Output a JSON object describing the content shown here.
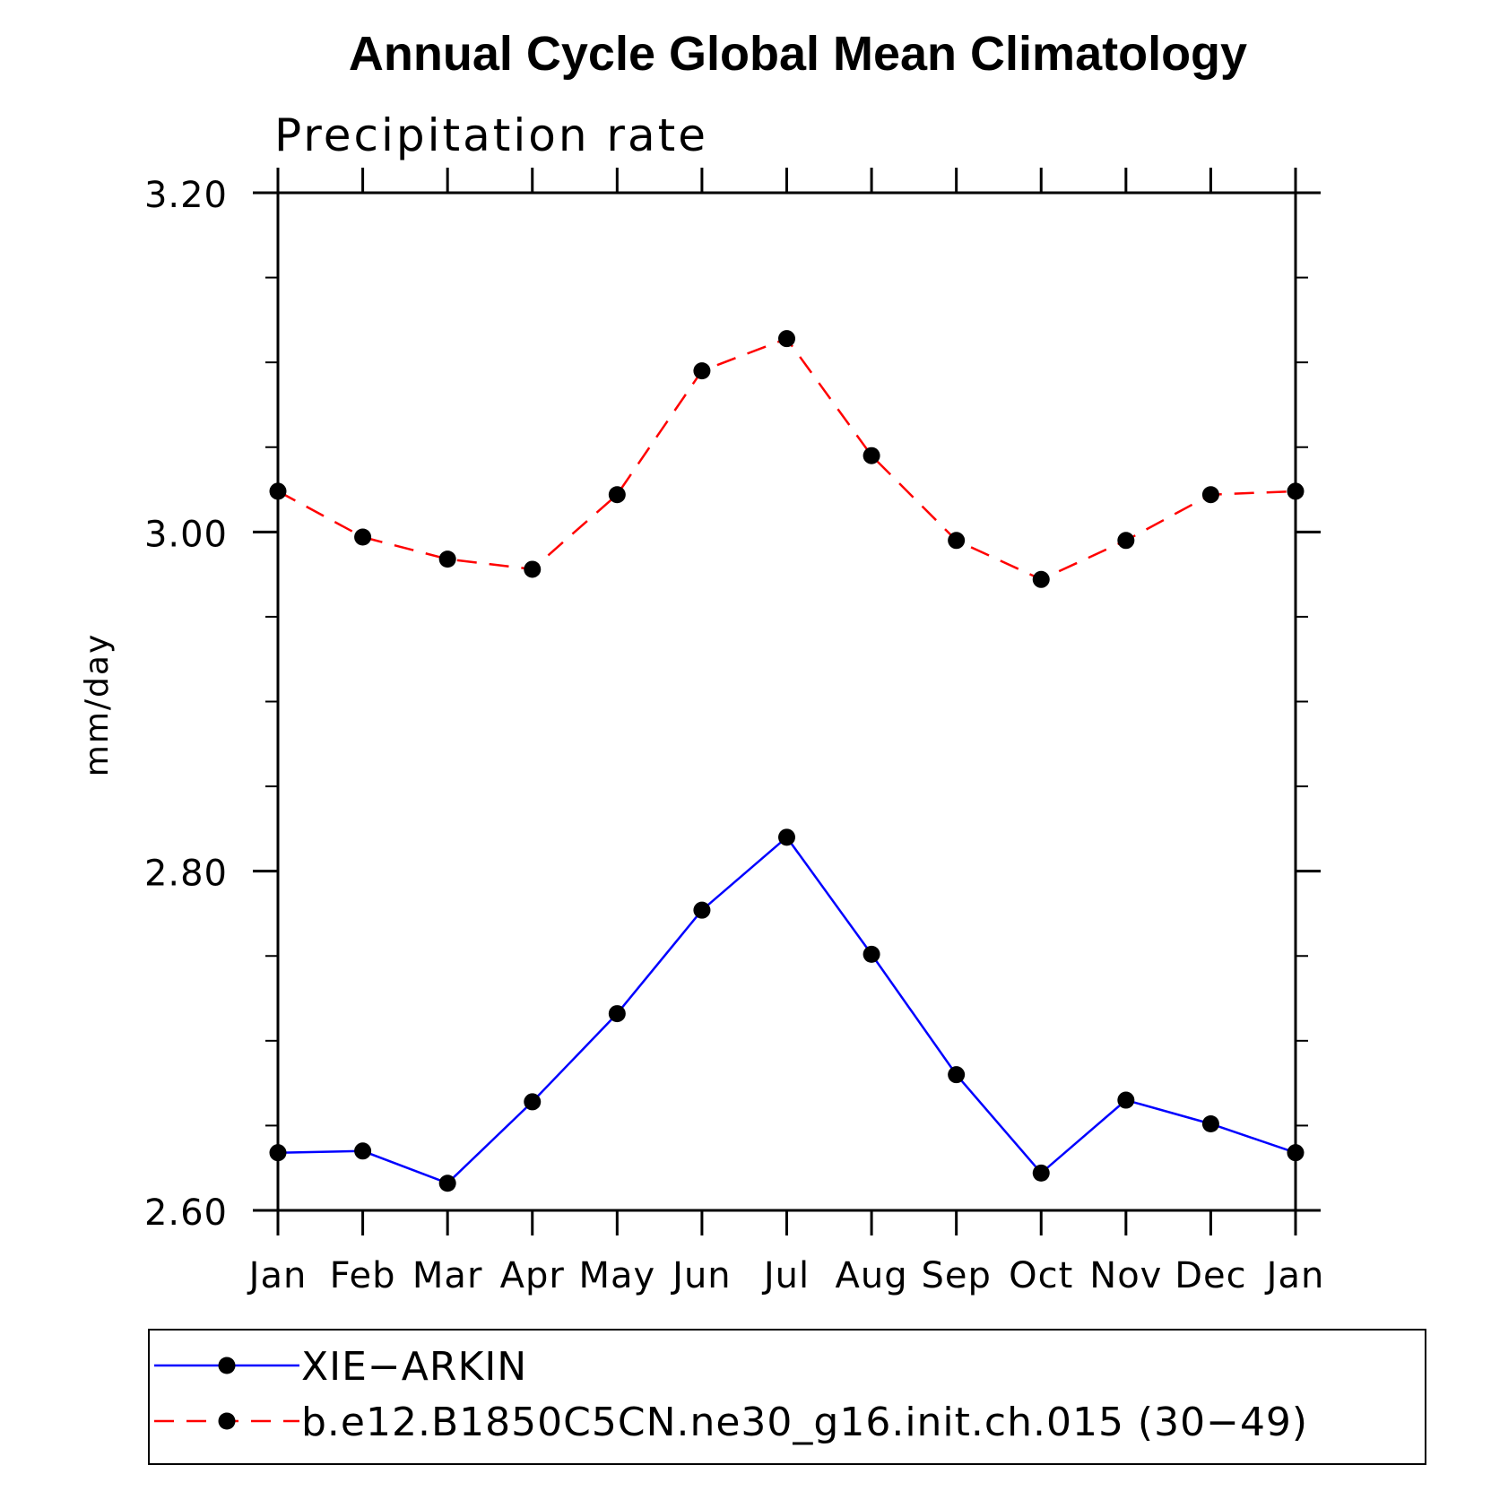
{
  "chart_data": {
    "type": "line",
    "title": "Annual Cycle Global Mean Climatology",
    "subtitle": "Precipitation rate",
    "xlabel": "",
    "ylabel": "mm/day",
    "categories": [
      "Jan",
      "Feb",
      "Mar",
      "Apr",
      "May",
      "Jun",
      "Jul",
      "Aug",
      "Sep",
      "Oct",
      "Nov",
      "Dec",
      "Jan"
    ],
    "ylim": [
      2.6,
      3.2
    ],
    "yticks_major": [
      "2.60",
      "2.80",
      "3.00",
      "3.20"
    ],
    "grid": false,
    "legend_position": "bottom",
    "series": [
      {
        "name": "XIE−ARKIN",
        "color": "#0000ff",
        "style": "solid",
        "marker": "filled-circle",
        "values": [
          2.634,
          2.635,
          2.616,
          2.664,
          2.716,
          2.777,
          2.82,
          2.751,
          2.68,
          2.622,
          2.665,
          2.651,
          2.634
        ]
      },
      {
        "name": "b.e12.B1850C5CN.ne30_g16.init.ch.015 (30−49)",
        "color": "#ff0000",
        "style": "dashed",
        "marker": "filled-circle",
        "values": [
          3.024,
          2.997,
          2.984,
          2.978,
          3.022,
          3.095,
          3.114,
          3.045,
          2.995,
          2.972,
          2.995,
          3.022,
          3.024
        ]
      }
    ]
  }
}
